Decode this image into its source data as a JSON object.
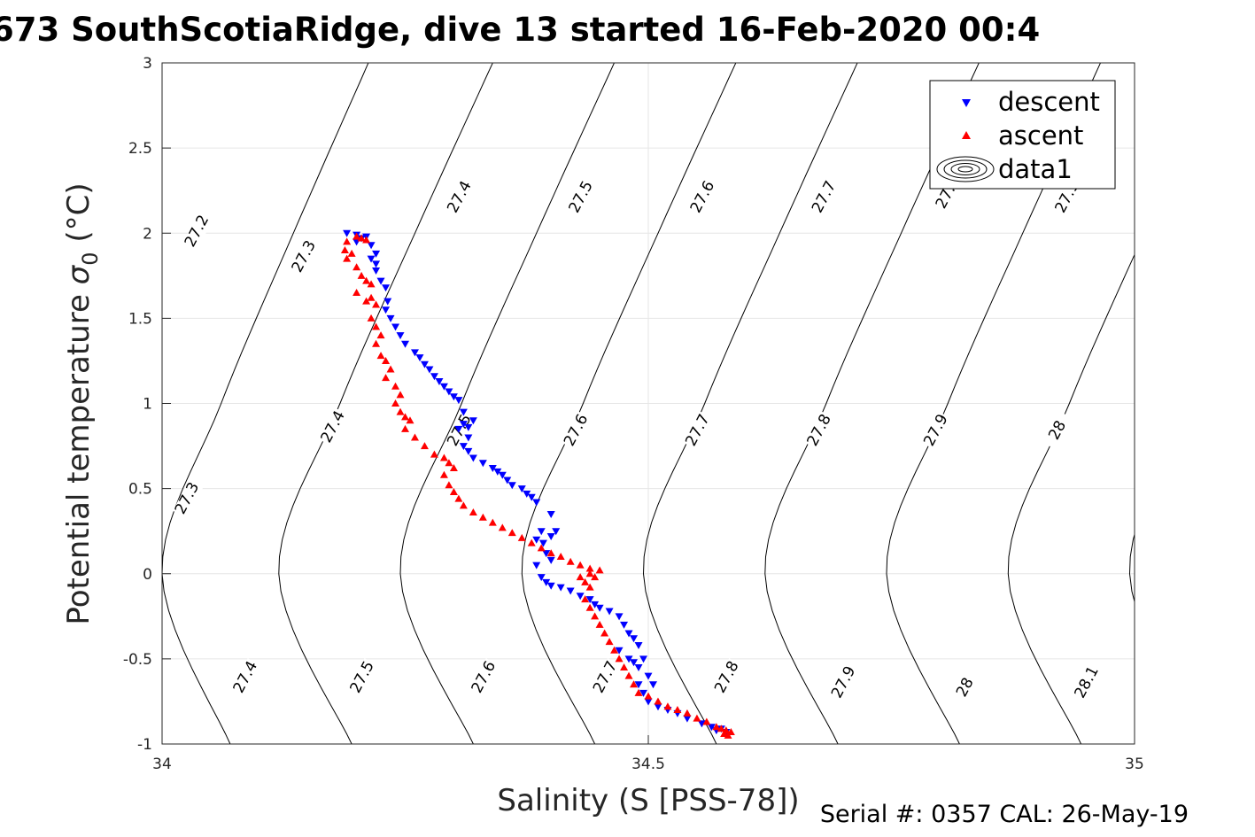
{
  "chart_data": {
    "type": "scatter",
    "title": "673 SouthScotiaRidge, dive 13 started 16-Feb-2020 00:4",
    "xlabel": "Salinity (S [PSS-78])",
    "ylabel_main": "Potential temperature ",
    "ylabel_symbol": "σ",
    "ylabel_sub": "0",
    "ylabel_unit": " (°C)",
    "xlim": [
      34,
      35
    ],
    "ylim": [
      -1,
      3
    ],
    "xticks": [
      "34",
      "34.5",
      "35"
    ],
    "yticks": [
      "-1",
      "-0.5",
      "0",
      "0.5",
      "1",
      "1.5",
      "2",
      "2.5",
      "3"
    ],
    "grid": true,
    "legend_position": "top-right",
    "legend": [
      {
        "label": "descent",
        "marker": "triangle-down",
        "color": "#0000ff"
      },
      {
        "label": "ascent",
        "marker": "triangle-up",
        "color": "#ff0000"
      },
      {
        "label": "data1",
        "marker": "contour",
        "color": "#000000"
      }
    ],
    "footer": "Serial #: 0357  CAL: 26-May-19",
    "contours": {
      "levels": [
        27.2,
        27.3,
        27.4,
        27.5,
        27.6,
        27.7,
        27.8,
        27.9,
        28.0,
        28.1
      ],
      "lines": [
        {
          "s_at_2": 34.0,
          "s_at_0": 34.0,
          "s_at_m1": 34.0
        },
        {
          "s_at_2": 34.135,
          "s_at_0": 34.0,
          "s_at_m1": 34.07
        },
        {
          "s_at_2": 34.26,
          "s_at_0": 34.12,
          "s_at_m1": 34.195
        },
        {
          "s_at_2": 34.385,
          "s_at_0": 34.245,
          "s_at_m1": 34.32
        },
        {
          "s_at_2": 34.51,
          "s_at_0": 34.37,
          "s_at_m1": 34.445
        },
        {
          "s_at_2": 34.635,
          "s_at_0": 34.495,
          "s_at_m1": 34.57
        },
        {
          "s_at_2": 34.76,
          "s_at_0": 34.62,
          "s_at_m1": 34.695
        },
        {
          "s_at_2": 34.885,
          "s_at_0": 34.745,
          "s_at_m1": 34.82
        },
        {
          "s_at_2": 35.01,
          "s_at_0": 34.87,
          "s_at_m1": 34.945
        },
        {
          "s_at_2": 35.135,
          "s_at_0": 34.995,
          "s_at_m1": 35.07
        }
      ],
      "labels": [
        {
          "text": "27.2",
          "s": 34.04,
          "t": 2.0
        },
        {
          "text": "27.3",
          "s": 34.15,
          "t": 1.85
        },
        {
          "text": "27.4",
          "s": 34.31,
          "t": 2.2
        },
        {
          "text": "27.5",
          "s": 34.435,
          "t": 2.2
        },
        {
          "text": "27.6",
          "s": 34.56,
          "t": 2.2
        },
        {
          "text": "27.7",
          "s": 34.685,
          "t": 2.2
        },
        {
          "text": "27.",
          "s": 34.81,
          "t": 2.2
        },
        {
          "text": "27.9",
          "s": 34.935,
          "t": 2.2
        },
        {
          "text": "27.3",
          "s": 34.03,
          "t": 0.43
        },
        {
          "text": "27.4",
          "s": 34.18,
          "t": 0.85
        },
        {
          "text": "27.5",
          "s": 34.31,
          "t": 0.83
        },
        {
          "text": "27.6",
          "s": 34.43,
          "t": 0.83
        },
        {
          "text": "27.7",
          "s": 34.555,
          "t": 0.83
        },
        {
          "text": "27.8",
          "s": 34.68,
          "t": 0.83
        },
        {
          "text": "27.9",
          "s": 34.8,
          "t": 0.83
        },
        {
          "text": "28",
          "s": 34.925,
          "t": 0.83
        },
        {
          "text": "27.4",
          "s": 34.09,
          "t": -0.62
        },
        {
          "text": "27.5",
          "s": 34.21,
          "t": -0.62
        },
        {
          "text": "27.6",
          "s": 34.335,
          "t": -0.62
        },
        {
          "text": "27.7",
          "s": 34.46,
          "t": -0.62
        },
        {
          "text": "27.8",
          "s": 34.585,
          "t": -0.62
        },
        {
          "text": "27.9",
          "s": 34.705,
          "t": -0.65
        },
        {
          "text": "28",
          "s": 34.83,
          "t": -0.68
        },
        {
          "text": "28.1",
          "s": 34.955,
          "t": -0.65
        }
      ]
    },
    "series": [
      {
        "name": "descent",
        "marker": "triangle-down",
        "color": "#0000ff",
        "points": [
          [
            34.19,
            2.0
          ],
          [
            34.2,
            1.99
          ],
          [
            34.205,
            1.97
          ],
          [
            34.21,
            1.98
          ],
          [
            34.2,
            1.95
          ],
          [
            34.215,
            1.93
          ],
          [
            34.22,
            1.88
          ],
          [
            34.215,
            1.85
          ],
          [
            34.22,
            1.82
          ],
          [
            34.22,
            1.78
          ],
          [
            34.225,
            1.72
          ],
          [
            34.23,
            1.68
          ],
          [
            34.232,
            1.6
          ],
          [
            34.23,
            1.55
          ],
          [
            34.235,
            1.5
          ],
          [
            34.24,
            1.45
          ],
          [
            34.245,
            1.4
          ],
          [
            34.25,
            1.35
          ],
          [
            34.26,
            1.3
          ],
          [
            34.265,
            1.27
          ],
          [
            34.27,
            1.23
          ],
          [
            34.275,
            1.2
          ],
          [
            34.28,
            1.16
          ],
          [
            34.285,
            1.13
          ],
          [
            34.29,
            1.1
          ],
          [
            34.295,
            1.07
          ],
          [
            34.3,
            1.04
          ],
          [
            34.305,
            1.02
          ],
          [
            34.31,
            0.95
          ],
          [
            34.31,
            0.88
          ],
          [
            34.305,
            0.85
          ],
          [
            34.315,
            0.86
          ],
          [
            34.32,
            0.9
          ],
          [
            34.315,
            0.8
          ],
          [
            34.31,
            0.75
          ],
          [
            34.315,
            0.72
          ],
          [
            34.32,
            0.68
          ],
          [
            34.33,
            0.65
          ],
          [
            34.34,
            0.62
          ],
          [
            34.345,
            0.6
          ],
          [
            34.35,
            0.58
          ],
          [
            34.355,
            0.55
          ],
          [
            34.36,
            0.52
          ],
          [
            34.37,
            0.5
          ],
          [
            34.375,
            0.47
          ],
          [
            34.38,
            0.45
          ],
          [
            34.385,
            0.42
          ],
          [
            34.4,
            0.35
          ],
          [
            34.39,
            0.25
          ],
          [
            34.385,
            0.2
          ],
          [
            34.392,
            0.18
          ],
          [
            34.4,
            0.22
          ],
          [
            34.405,
            0.25
          ],
          [
            34.395,
            0.12
          ],
          [
            34.4,
            0.08
          ],
          [
            34.385,
            0.05
          ],
          [
            34.39,
            -0.02
          ],
          [
            34.395,
            -0.05
          ],
          [
            34.4,
            -0.07
          ],
          [
            34.41,
            -0.08
          ],
          [
            34.42,
            -0.1
          ],
          [
            34.43,
            -0.13
          ],
          [
            34.44,
            -0.15
          ],
          [
            34.445,
            -0.18
          ],
          [
            34.45,
            -0.2
          ],
          [
            34.46,
            -0.22
          ],
          [
            34.47,
            -0.25
          ],
          [
            34.475,
            -0.3
          ],
          [
            34.48,
            -0.35
          ],
          [
            34.485,
            -0.38
          ],
          [
            34.49,
            -0.42
          ],
          [
            34.47,
            -0.45
          ],
          [
            34.48,
            -0.5
          ],
          [
            34.485,
            -0.52
          ],
          [
            34.49,
            -0.55
          ],
          [
            34.495,
            -0.5
          ],
          [
            34.5,
            -0.6
          ],
          [
            34.49,
            -0.65
          ],
          [
            34.495,
            -0.7
          ],
          [
            34.5,
            -0.75
          ],
          [
            34.51,
            -0.78
          ],
          [
            34.52,
            -0.8
          ],
          [
            34.53,
            -0.82
          ],
          [
            34.54,
            -0.85
          ],
          [
            34.555,
            -0.88
          ],
          [
            34.565,
            -0.9
          ],
          [
            34.57,
            -0.92
          ],
          [
            34.575,
            -0.91
          ],
          [
            34.58,
            -0.93
          ],
          [
            34.505,
            -0.65
          ]
        ]
      },
      {
        "name": "ascent",
        "marker": "triangle-up",
        "color": "#ff0000",
        "points": [
          [
            34.19,
            1.95
          ],
          [
            34.188,
            1.9
          ],
          [
            34.195,
            1.88
          ],
          [
            34.2,
            1.98
          ],
          [
            34.205,
            1.97
          ],
          [
            34.21,
            1.96
          ],
          [
            34.19,
            1.85
          ],
          [
            34.2,
            1.8
          ],
          [
            34.205,
            1.75
          ],
          [
            34.21,
            1.72
          ],
          [
            34.215,
            1.7
          ],
          [
            34.2,
            1.65
          ],
          [
            34.21,
            1.6
          ],
          [
            34.215,
            1.62
          ],
          [
            34.22,
            1.58
          ],
          [
            34.215,
            1.5
          ],
          [
            34.22,
            1.45
          ],
          [
            34.225,
            1.4
          ],
          [
            34.22,
            1.35
          ],
          [
            34.225,
            1.28
          ],
          [
            34.23,
            1.25
          ],
          [
            34.235,
            1.2
          ],
          [
            34.23,
            1.15
          ],
          [
            34.24,
            1.1
          ],
          [
            34.245,
            1.05
          ],
          [
            34.24,
            1.0
          ],
          [
            34.245,
            0.95
          ],
          [
            34.25,
            0.92
          ],
          [
            34.255,
            0.9
          ],
          [
            34.25,
            0.85
          ],
          [
            34.26,
            0.8
          ],
          [
            34.27,
            0.75
          ],
          [
            34.28,
            0.7
          ],
          [
            34.29,
            0.68
          ],
          [
            34.295,
            0.65
          ],
          [
            34.3,
            0.62
          ],
          [
            34.29,
            0.58
          ],
          [
            34.295,
            0.52
          ],
          [
            34.3,
            0.48
          ],
          [
            34.305,
            0.44
          ],
          [
            34.31,
            0.4
          ],
          [
            34.32,
            0.36
          ],
          [
            34.33,
            0.33
          ],
          [
            34.34,
            0.3
          ],
          [
            34.35,
            0.27
          ],
          [
            34.36,
            0.24
          ],
          [
            34.37,
            0.21
          ],
          [
            34.38,
            0.18
          ],
          [
            34.39,
            0.15
          ],
          [
            34.4,
            0.12
          ],
          [
            34.41,
            0.1
          ],
          [
            34.42,
            0.07
          ],
          [
            34.43,
            0.05
          ],
          [
            34.44,
            0.03
          ],
          [
            34.45,
            0.02
          ],
          [
            34.43,
            -0.02
          ],
          [
            34.435,
            -0.05
          ],
          [
            34.44,
            -0.08
          ],
          [
            34.445,
            -0.02
          ],
          [
            34.44,
            0.0
          ],
          [
            34.435,
            -0.15
          ],
          [
            34.44,
            -0.2
          ],
          [
            34.445,
            -0.25
          ],
          [
            34.45,
            -0.3
          ],
          [
            34.455,
            -0.35
          ],
          [
            34.46,
            -0.4
          ],
          [
            34.465,
            -0.45
          ],
          [
            34.47,
            -0.5
          ],
          [
            34.475,
            -0.55
          ],
          [
            34.48,
            -0.6
          ],
          [
            34.485,
            -0.65
          ],
          [
            34.49,
            -0.7
          ],
          [
            34.5,
            -0.72
          ],
          [
            34.51,
            -0.75
          ],
          [
            34.52,
            -0.78
          ],
          [
            34.53,
            -0.8
          ],
          [
            34.54,
            -0.82
          ],
          [
            34.55,
            -0.85
          ],
          [
            34.56,
            -0.87
          ],
          [
            34.57,
            -0.9
          ],
          [
            34.575,
            -0.91
          ],
          [
            34.58,
            -0.92
          ],
          [
            34.585,
            -0.93
          ],
          [
            34.582,
            -0.95
          ],
          [
            34.578,
            -0.94
          ]
        ]
      }
    ]
  }
}
